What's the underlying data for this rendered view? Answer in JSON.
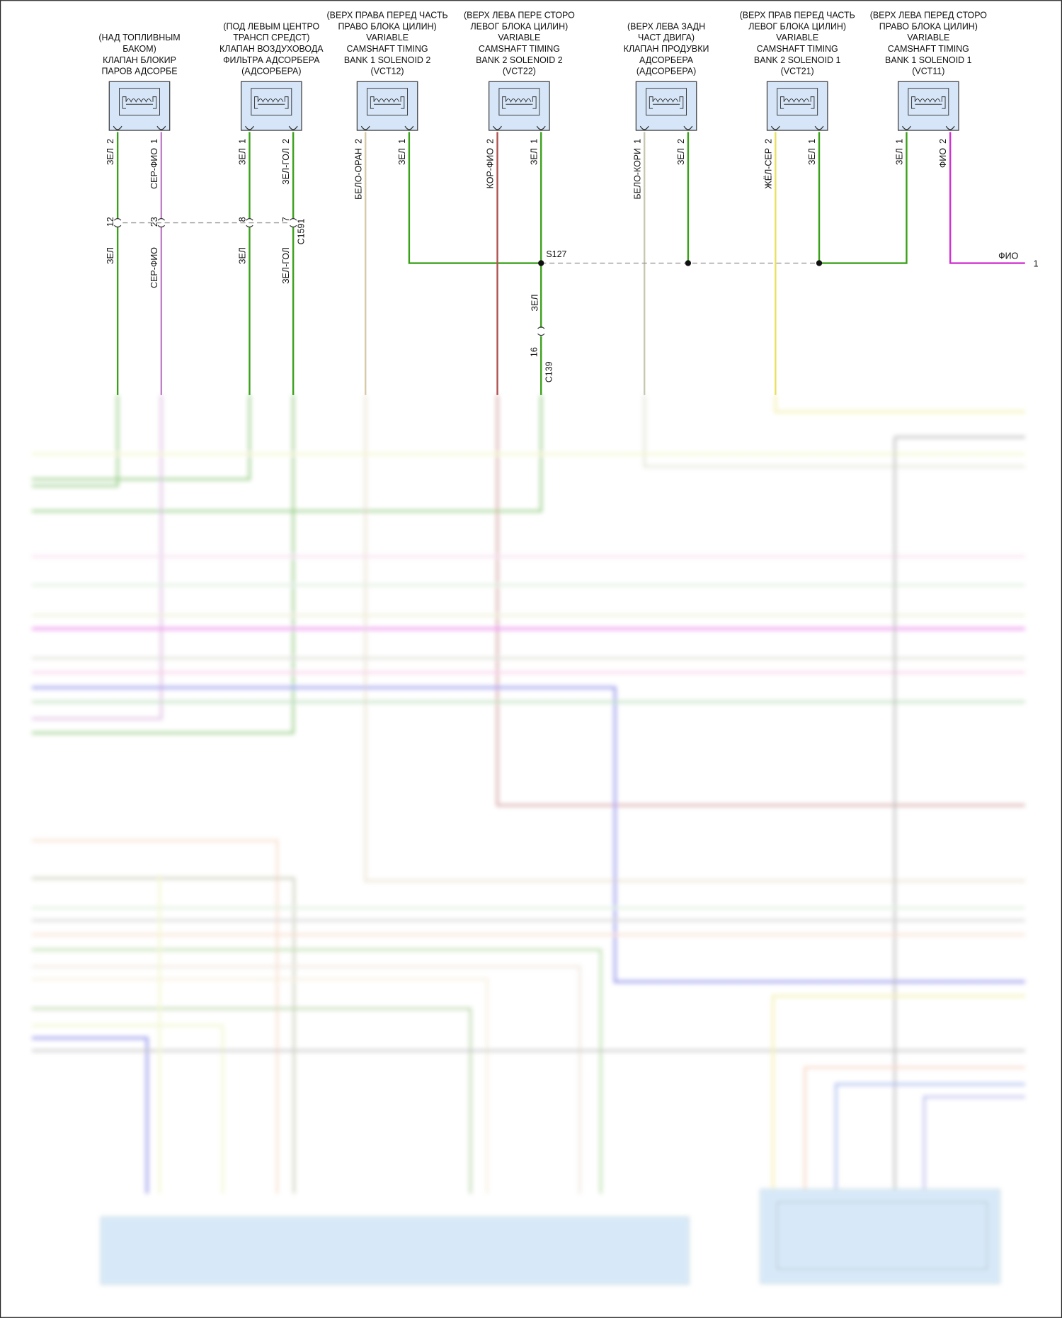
{
  "components": [
    {
      "label": [
        "(НАД ТОПЛИВНЫМ",
        "БАКОМ)",
        "КЛАПАН БЛОКИР",
        "ПАРОВ АДСОРБЕ"
      ],
      "pins": [
        {
          "number": "2",
          "wire": "ЗЕЛ",
          "color": "#3aa01a"
        },
        {
          "number": "1",
          "wire": "СЕР-ФИО",
          "color": "#c080c8"
        }
      ]
    },
    {
      "label": [
        "(ПОД ЛЕВЫМ ЦЕНТРО",
        "ТРАНСП СРЕДСТ)",
        "КЛАПАН ВОЗДУХОВОДА",
        "ФИЛЬТРА АДСОРБЕРА",
        "(АДСОРБЕРА)"
      ],
      "pins": [
        {
          "number": "1",
          "wire": "ЗЕЛ",
          "color": "#3aa01a"
        },
        {
          "number": "2",
          "wire": "ЗЕЛ-ГОЛ",
          "color": "#3aa01a"
        }
      ]
    },
    {
      "label": [
        "(ВЕРХ ПРАВА ПЕРЕД ЧАСТЬ",
        "ПРАВО БЛОКА ЦИЛИН)",
        "VARIABLE",
        "CAMSHAFT TIMING",
        "BANK 1 SOLENOID 2",
        "(VCT12)"
      ],
      "pins": [
        {
          "number": "2",
          "wire": "БЕЛО-ОРАН",
          "color": "#d8c8a8"
        },
        {
          "number": "1",
          "wire": "ЗЕЛ",
          "color": "#3aa01a"
        }
      ]
    },
    {
      "label": [
        "(ВЕРХ ЛЕВА ПЕРЕ СТОРО",
        "ЛЕВОГ БЛОКА ЦИЛИН)",
        "VARIABLE",
        "CAMSHAFT TIMING",
        "BANK 2 SOLENOID 2",
        "(VCT22)"
      ],
      "pins": [
        {
          "number": "2",
          "wire": "КОР-ФИО",
          "color": "#b05050"
        },
        {
          "number": "1",
          "wire": "ЗЕЛ",
          "color": "#3aa01a"
        }
      ]
    },
    {
      "label": [
        "(ВЕРХ ЛЕВА ЗАДН",
        "ЧАСТ ДВИГА)",
        "КЛАПАН ПРОДУВКИ",
        "АДСОРБЕРА",
        "(АДСОРБЕРА)"
      ],
      "pins": [
        {
          "number": "1",
          "wire": "БЕЛО-КОРИ",
          "color": "#c8c8b0"
        },
        {
          "number": "2",
          "wire": "ЗЕЛ",
          "color": "#3aa01a"
        }
      ]
    },
    {
      "label": [
        "(ВЕРХ ПРАВ ПЕРЕД ЧАСТЬ",
        "ЛЕВОГ БЛОКА ЦИЛИН)",
        "VARIABLE",
        "CAMSHAFT TIMING",
        "BANK 2 SOLENOID 1",
        "(VCT21)"
      ],
      "pins": [
        {
          "number": "2",
          "wire": "ЖЁЛ-СЕР",
          "color": "#e8e060"
        },
        {
          "number": "1",
          "wire": "ЗЕЛ",
          "color": "#3aa01a"
        }
      ]
    },
    {
      "label": [
        "(ВЕРХ ЛЕВА ПЕРЕД СТОРО",
        "ПРАВО БЛОКА ЦИЛИН)",
        "VARIABLE",
        "CAMSHAFT TIMING",
        "BANK 1 SOLENOID 1",
        "(VCT11)"
      ],
      "pins": [
        {
          "number": "1",
          "wire": "ЗЕЛ",
          "color": "#3aa01a"
        },
        {
          "number": "2",
          "wire": "ФИО",
          "color": "#d030d0"
        }
      ]
    }
  ],
  "connector_c1591": {
    "name": "C1591",
    "pins": [
      {
        "number": "12",
        "wire": "ЗЕЛ"
      },
      {
        "number": "23",
        "wire": "СЕР-ФИО"
      },
      {
        "number": "8",
        "wire": "ЗЕЛ"
      },
      {
        "number": "7",
        "wire": "ЗЕЛ-ГОЛ"
      }
    ]
  },
  "splice": {
    "name": "S127",
    "wire": "ЗЕЛ"
  },
  "connector_c139": {
    "name": "C139",
    "pin": "16"
  },
  "output": {
    "wire": "ФИО",
    "number": "1"
  }
}
